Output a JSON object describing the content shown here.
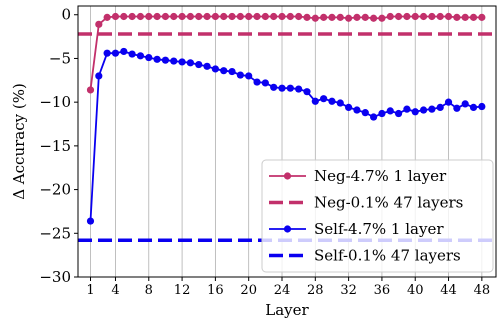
{
  "chart_data": {
    "type": "line",
    "xlabel": "Layer",
    "ylabel": "Δ Accuracy (%)",
    "xlim": [
      -0.5,
      49.7
    ],
    "ylim": [
      -30,
      1
    ],
    "x_ticks": [
      1,
      4,
      8,
      12,
      16,
      20,
      24,
      28,
      32,
      36,
      40,
      44,
      48
    ],
    "y_ticks": [
      0,
      -5,
      -10,
      -15,
      -20,
      -25,
      -30
    ],
    "grid": "x",
    "legend_position": "lower-right",
    "series": [
      {
        "name": "Neg-4.7% 1 layer",
        "kind": "line-marker",
        "color": "#c2306b",
        "x": [
          1,
          2,
          3,
          4,
          5,
          6,
          7,
          8,
          9,
          10,
          11,
          12,
          13,
          14,
          15,
          16,
          17,
          18,
          19,
          20,
          21,
          22,
          23,
          24,
          25,
          26,
          27,
          28,
          29,
          30,
          31,
          32,
          33,
          34,
          35,
          36,
          37,
          38,
          39,
          40,
          41,
          42,
          43,
          44,
          45,
          46,
          47,
          48
        ],
        "values": [
          -8.6,
          -1.1,
          -0.3,
          -0.2,
          -0.2,
          -0.2,
          -0.2,
          -0.2,
          -0.2,
          -0.2,
          -0.2,
          -0.2,
          -0.2,
          -0.2,
          -0.2,
          -0.2,
          -0.2,
          -0.2,
          -0.2,
          -0.2,
          -0.2,
          -0.2,
          -0.2,
          -0.2,
          -0.2,
          -0.2,
          -0.3,
          -0.4,
          -0.3,
          -0.3,
          -0.3,
          -0.4,
          -0.3,
          -0.3,
          -0.4,
          -0.4,
          -0.2,
          -0.2,
          -0.2,
          -0.2,
          -0.2,
          -0.2,
          -0.2,
          -0.2,
          -0.3,
          -0.3,
          -0.3,
          -0.3
        ]
      },
      {
        "name": "Neg-0.1% 47 layers",
        "kind": "hline",
        "color": "#c2306b",
        "value": -2.2
      },
      {
        "name": "Self-4.7% 1 layer",
        "kind": "line-marker",
        "color": "#0a00f0",
        "x": [
          1,
          2,
          3,
          4,
          5,
          6,
          7,
          8,
          9,
          10,
          11,
          12,
          13,
          14,
          15,
          16,
          17,
          18,
          19,
          20,
          21,
          22,
          23,
          24,
          25,
          26,
          27,
          28,
          29,
          30,
          31,
          32,
          33,
          34,
          35,
          36,
          37,
          38,
          39,
          40,
          41,
          42,
          43,
          44,
          45,
          46,
          47,
          48
        ],
        "values": [
          -23.6,
          -7.0,
          -4.4,
          -4.4,
          -4.2,
          -4.5,
          -4.7,
          -4.9,
          -5.1,
          -5.2,
          -5.3,
          -5.4,
          -5.5,
          -5.7,
          -5.9,
          -6.2,
          -6.4,
          -6.5,
          -6.9,
          -7.0,
          -7.7,
          -7.8,
          -8.3,
          -8.4,
          -8.4,
          -8.5,
          -8.8,
          -9.9,
          -9.6,
          -9.9,
          -10.1,
          -10.6,
          -10.9,
          -11.2,
          -11.7,
          -11.3,
          -11.0,
          -11.3,
          -10.8,
          -11.1,
          -10.9,
          -10.8,
          -10.6,
          -10.0,
          -10.7,
          -10.2,
          -10.6,
          -10.5
        ]
      },
      {
        "name": "Self-0.1% 47 layers",
        "kind": "hline",
        "color": "#0a00f0",
        "value": -25.8
      }
    ]
  }
}
